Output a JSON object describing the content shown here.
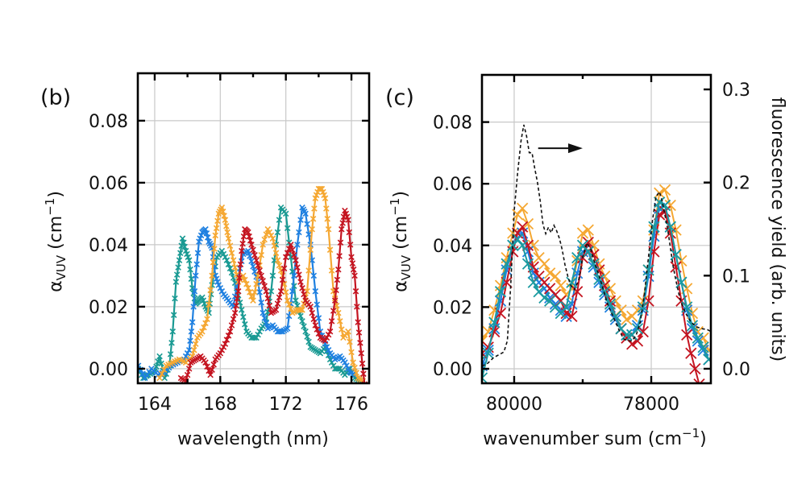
{
  "chart_data": [
    {
      "panel": "(b)",
      "type": "line",
      "title": "",
      "xlabel": "wavelength (nm)",
      "ylabel": "α_VUV (cm⁻¹)",
      "ylabel_main": "α",
      "ylabel_sub": "VUV",
      "ylabel_unit": " (cm",
      "ylabel_exp": "−1",
      "ylabel_close": ")",
      "xlim": [
        162.97,
        177.08
      ],
      "ylim": [
        -0.0047,
        0.0953
      ],
      "xticks": [
        164,
        168,
        172,
        176
      ],
      "xtick_labels": [
        "164",
        "168",
        "172",
        "176"
      ],
      "xminor": [
        166,
        170,
        174
      ],
      "yticks": [
        0.0,
        0.02,
        0.04,
        0.06,
        0.08
      ],
      "ytick_labels": [
        "0.00",
        "0.02",
        "0.04",
        "0.06",
        "0.08"
      ],
      "grid": true,
      "marker": "x",
      "series": [
        {
          "name": "teal",
          "color": "#1a9a93",
          "x": [
            163.0,
            163.3,
            163.6,
            164.0,
            164.3,
            164.6,
            164.9,
            165.1,
            165.3,
            165.5,
            165.7,
            165.9,
            166.1,
            166.3,
            166.5,
            166.7,
            166.9,
            167.1,
            167.3,
            167.5,
            167.8,
            168.1,
            168.4,
            168.7,
            169.0,
            169.3,
            169.6,
            169.9,
            170.2,
            170.5,
            170.8,
            171.1,
            171.4,
            171.7,
            172.0,
            172.3,
            172.6,
            172.9,
            173.2,
            173.5,
            173.8,
            174.1,
            174.4,
            174.7,
            175.0,
            175.3,
            175.6,
            175.9,
            176.2,
            176.5
          ],
          "y": [
            0.0,
            -0.003,
            -0.002,
            -0.001,
            0.004,
            -0.003,
            0.001,
            0.012,
            0.028,
            0.035,
            0.042,
            0.038,
            0.035,
            0.026,
            0.021,
            0.022,
            0.023,
            0.02,
            0.018,
            0.027,
            0.036,
            0.038,
            0.035,
            0.031,
            0.026,
            0.019,
            0.012,
            0.01,
            0.01,
            0.013,
            0.015,
            0.025,
            0.04,
            0.052,
            0.05,
            0.036,
            0.022,
            0.017,
            0.012,
            0.007,
            0.006,
            0.005,
            0.007,
            0.003,
            0.0,
            0.0,
            -0.002,
            0.0,
            -0.003,
            -0.004
          ]
        },
        {
          "name": "blue",
          "color": "#1f80e0",
          "x": [
            163.0,
            163.4,
            163.8,
            164.2,
            164.6,
            165.0,
            165.4,
            165.8,
            166.1,
            166.3,
            166.5,
            166.7,
            166.9,
            167.1,
            167.3,
            167.5,
            167.7,
            167.9,
            168.2,
            168.5,
            168.8,
            169.1,
            169.4,
            169.7,
            170.0,
            170.3,
            170.6,
            170.9,
            171.2,
            171.5,
            171.8,
            172.1,
            172.4,
            172.7,
            173.0,
            173.2,
            173.5,
            173.8,
            174.1,
            174.4,
            174.7,
            175.0,
            175.3,
            175.6,
            175.9,
            176.2
          ],
          "y": [
            0.001,
            -0.003,
            0.0,
            -0.002,
            -0.001,
            0.001,
            0.002,
            0.003,
            0.006,
            0.015,
            0.03,
            0.041,
            0.044,
            0.045,
            0.041,
            0.039,
            0.03,
            0.027,
            0.024,
            0.022,
            0.02,
            0.03,
            0.037,
            0.038,
            0.033,
            0.028,
            0.018,
            0.013,
            0.014,
            0.012,
            0.012,
            0.013,
            0.025,
            0.04,
            0.052,
            0.05,
            0.04,
            0.025,
            0.012,
            0.008,
            0.005,
            0.003,
            0.004,
            0.002,
            -0.001,
            -0.002
          ]
        },
        {
          "name": "orange",
          "color": "#f5a833",
          "x": [
            164.3,
            164.7,
            165.1,
            165.5,
            165.9,
            166.3,
            166.6,
            166.9,
            167.2,
            167.5,
            167.7,
            167.9,
            168.1,
            168.3,
            168.5,
            168.8,
            169.1,
            169.4,
            169.7,
            170.0,
            170.3,
            170.6,
            170.9,
            171.2,
            171.5,
            171.8,
            172.1,
            172.4,
            172.7,
            173.0,
            173.3,
            173.6,
            173.8,
            174.0,
            174.2,
            174.4,
            174.6,
            174.9,
            175.2,
            175.5,
            175.8,
            176.1,
            176.4,
            176.7
          ],
          "y": [
            -0.003,
            0.001,
            0.002,
            0.003,
            0.002,
            0.004,
            0.01,
            0.012,
            0.016,
            0.03,
            0.043,
            0.05,
            0.052,
            0.048,
            0.042,
            0.035,
            0.028,
            0.03,
            0.026,
            0.022,
            0.03,
            0.04,
            0.045,
            0.042,
            0.035,
            0.03,
            0.022,
            0.018,
            0.019,
            0.019,
            0.025,
            0.045,
            0.055,
            0.058,
            0.058,
            0.055,
            0.045,
            0.025,
            0.018,
            0.01,
            0.012,
            0.002,
            -0.003,
            -0.004
          ]
        },
        {
          "name": "red",
          "color": "#c41420",
          "x": [
            165.6,
            165.9,
            166.2,
            166.5,
            166.8,
            167.1,
            167.4,
            167.7,
            168.0,
            168.3,
            168.6,
            168.9,
            169.1,
            169.3,
            169.5,
            169.7,
            169.9,
            170.2,
            170.5,
            170.8,
            171.1,
            171.4,
            171.7,
            172.0,
            172.3,
            172.6,
            172.9,
            173.2,
            173.5,
            173.8,
            174.1,
            174.4,
            174.7,
            175.0,
            175.2,
            175.4,
            175.6,
            175.8,
            176.0,
            176.2,
            176.4,
            176.6,
            176.8
          ],
          "y": [
            -0.003,
            -0.004,
            0.002,
            0.003,
            0.004,
            0.002,
            -0.002,
            0.003,
            0.005,
            0.008,
            0.012,
            0.018,
            0.025,
            0.038,
            0.045,
            0.044,
            0.04,
            0.035,
            0.03,
            0.025,
            0.018,
            0.019,
            0.025,
            0.036,
            0.04,
            0.035,
            0.028,
            0.022,
            0.02,
            0.014,
            0.01,
            0.009,
            0.012,
            0.022,
            0.032,
            0.045,
            0.051,
            0.048,
            0.036,
            0.03,
            0.015,
            0.005,
            -0.005
          ]
        }
      ]
    },
    {
      "panel": "(c)",
      "type": "line",
      "title": "",
      "xlabel": "wavenumber sum (cm⁻¹)",
      "xlabel_main": "wavenumber sum (cm",
      "xlabel_exp": "−1",
      "xlabel_close": ")",
      "ylabel": "α_VUV (cm⁻¹)",
      "ylabel_main": "α",
      "ylabel_sub": "VUV",
      "ylabel_unit": " (cm",
      "ylabel_exp": "−1",
      "ylabel_close": ")",
      "ylabel_right": "fluorescence yield (arb. units)",
      "xlim": [
        80470,
        77130
      ],
      "x_reversed": true,
      "ylim": [
        -0.0047,
        0.0953
      ],
      "ylim_right": [
        -0.0156,
        0.3156
      ],
      "xticks": [
        80000,
        78000
      ],
      "xtick_labels": [
        "80000",
        "78000"
      ],
      "xminor": [
        79000
      ],
      "yticks": [
        0.0,
        0.02,
        0.04,
        0.06,
        0.08
      ],
      "ytick_labels": [
        "0.00",
        "0.02",
        "0.04",
        "0.06",
        "0.08"
      ],
      "yticks_right": [
        0.0,
        0.1,
        0.2,
        0.3
      ],
      "ytick_labels_right": [
        "0.0",
        "0.1",
        "0.2",
        "0.3"
      ],
      "grid": true,
      "annotation": {
        "type": "arrow",
        "direction": "right",
        "meaning": "dashed curve uses right axis",
        "from": [
          79650,
          0.0715
        ],
        "to": [
          79000,
          0.0715
        ]
      },
      "series": [
        {
          "name": "orange",
          "color": "#f5a833",
          "axis": "left",
          "x": [
            80470,
            80380,
            80290,
            80200,
            80110,
            80020,
            79950,
            79880,
            79800,
            79720,
            79640,
            79560,
            79480,
            79400,
            79320,
            79240,
            79160,
            79080,
            79000,
            78920,
            78840,
            78760,
            78680,
            78600,
            78520,
            78440,
            78360,
            78280,
            78200,
            78120,
            78040,
            77960,
            77880,
            77800,
            77720,
            77640,
            77560,
            77480,
            77400,
            77320,
            77240,
            77160
          ],
          "y": [
            0.009,
            0.012,
            0.019,
            0.027,
            0.036,
            0.044,
            0.05,
            0.052,
            0.047,
            0.04,
            0.036,
            0.034,
            0.031,
            0.03,
            0.027,
            0.024,
            0.026,
            0.035,
            0.044,
            0.045,
            0.04,
            0.034,
            0.03,
            0.026,
            0.022,
            0.019,
            0.016,
            0.017,
            0.019,
            0.022,
            0.032,
            0.045,
            0.057,
            0.058,
            0.053,
            0.045,
            0.035,
            0.026,
            0.018,
            0.012,
            0.01,
            0.006
          ]
        },
        {
          "name": "blue",
          "color": "#1f80e0",
          "axis": "left",
          "x": [
            80470,
            80380,
            80290,
            80200,
            80110,
            80020,
            79950,
            79880,
            79800,
            79720,
            79640,
            79560,
            79480,
            79400,
            79320,
            79240,
            79160,
            79080,
            79000,
            78920,
            78840,
            78760,
            78680,
            78600,
            78520,
            78440,
            78360,
            78280,
            78200,
            78120,
            78040,
            77960,
            77880,
            77800,
            77720,
            77640,
            77560,
            77480,
            77400,
            77320,
            77240,
            77160
          ],
          "y": [
            0.001,
            0.006,
            0.013,
            0.022,
            0.032,
            0.04,
            0.044,
            0.044,
            0.038,
            0.031,
            0.028,
            0.026,
            0.023,
            0.021,
            0.019,
            0.017,
            0.021,
            0.031,
            0.038,
            0.038,
            0.033,
            0.028,
            0.024,
            0.02,
            0.016,
            0.013,
            0.011,
            0.011,
            0.014,
            0.019,
            0.03,
            0.043,
            0.052,
            0.053,
            0.046,
            0.037,
            0.028,
            0.019,
            0.013,
            0.009,
            0.006,
            0.003
          ]
        },
        {
          "name": "red",
          "color": "#c41420",
          "axis": "left",
          "x": [
            80470,
            80380,
            80290,
            80200,
            80110,
            80020,
            79950,
            79880,
            79800,
            79720,
            79640,
            79560,
            79480,
            79400,
            79320,
            79240,
            79160,
            79080,
            79000,
            78920,
            78840,
            78760,
            78680,
            78600,
            78520,
            78440,
            78360,
            78280,
            78200,
            78120,
            78040,
            77960,
            77880,
            77800,
            77720,
            77640,
            77560,
            77480,
            77420,
            77360,
            77300
          ],
          "y": [
            0.005,
            0.007,
            0.012,
            0.018,
            0.028,
            0.038,
            0.044,
            0.046,
            0.04,
            0.033,
            0.03,
            0.028,
            0.026,
            0.024,
            0.022,
            0.018,
            0.017,
            0.025,
            0.036,
            0.041,
            0.037,
            0.032,
            0.027,
            0.022,
            0.017,
            0.013,
            0.01,
            0.008,
            0.009,
            0.012,
            0.022,
            0.038,
            0.05,
            0.051,
            0.044,
            0.033,
            0.022,
            0.011,
            0.005,
            0.0,
            -0.005
          ]
        },
        {
          "name": "teal",
          "color": "#1a9aa0",
          "axis": "left",
          "x": [
            80470,
            80380,
            80290,
            80200,
            80110,
            80020,
            79950,
            79880,
            79800,
            79720,
            79640,
            79560,
            79480,
            79400,
            79320,
            79240,
            79160,
            79080,
            79000,
            78920,
            78840,
            78760,
            78680,
            78600,
            78520,
            78440,
            78360,
            78280,
            78200,
            78120,
            78040,
            77960,
            77880,
            77800,
            77720,
            77640,
            77560,
            77480,
            77400,
            77320,
            77240,
            77160
          ],
          "y": [
            -0.003,
            0.005,
            0.015,
            0.025,
            0.034,
            0.04,
            0.042,
            0.04,
            0.034,
            0.028,
            0.025,
            0.023,
            0.022,
            0.02,
            0.018,
            0.02,
            0.028,
            0.036,
            0.04,
            0.038,
            0.034,
            0.029,
            0.025,
            0.021,
            0.017,
            0.013,
            0.011,
            0.011,
            0.013,
            0.02,
            0.032,
            0.046,
            0.054,
            0.053,
            0.046,
            0.037,
            0.028,
            0.02,
            0.014,
            0.01,
            0.007,
            0.003
          ]
        },
        {
          "name": "fluorescence",
          "color": "#111111",
          "style": "dashed",
          "axis": "right",
          "x": [
            80470,
            80400,
            80300,
            80200,
            80150,
            80100,
            80050,
            80000,
            79950,
            79900,
            79860,
            79820,
            79780,
            79740,
            79700,
            79660,
            79620,
            79580,
            79540,
            79500,
            79460,
            79420,
            79380,
            79340,
            79300,
            79260,
            79220,
            79180,
            79120,
            79060,
            79000,
            78940,
            78880,
            78820,
            78760,
            78700,
            78640,
            78580,
            78520,
            78460,
            78400,
            78340,
            78280,
            78220,
            78160,
            78100,
            78040,
            77980,
            77930,
            77880,
            77840,
            77800,
            77760,
            77720,
            77680,
            77640,
            77580,
            77500,
            77420,
            77340,
            77260,
            77180,
            77130
          ],
          "y": [
            0.003,
            0.005,
            0.012,
            0.016,
            0.018,
            0.03,
            0.09,
            0.17,
            0.21,
            0.245,
            0.262,
            0.25,
            0.232,
            0.232,
            0.215,
            0.2,
            0.18,
            0.155,
            0.145,
            0.152,
            0.146,
            0.154,
            0.148,
            0.14,
            0.128,
            0.112,
            0.1,
            0.09,
            0.085,
            0.095,
            0.12,
            0.135,
            0.128,
            0.112,
            0.1,
            0.085,
            0.07,
            0.06,
            0.05,
            0.04,
            0.032,
            0.03,
            0.03,
            0.036,
            0.05,
            0.08,
            0.12,
            0.16,
            0.185,
            0.19,
            0.18,
            0.165,
            0.15,
            0.13,
            0.11,
            0.095,
            0.075,
            0.06,
            0.05,
            0.045,
            0.043,
            0.042,
            0.04
          ]
        }
      ]
    }
  ]
}
